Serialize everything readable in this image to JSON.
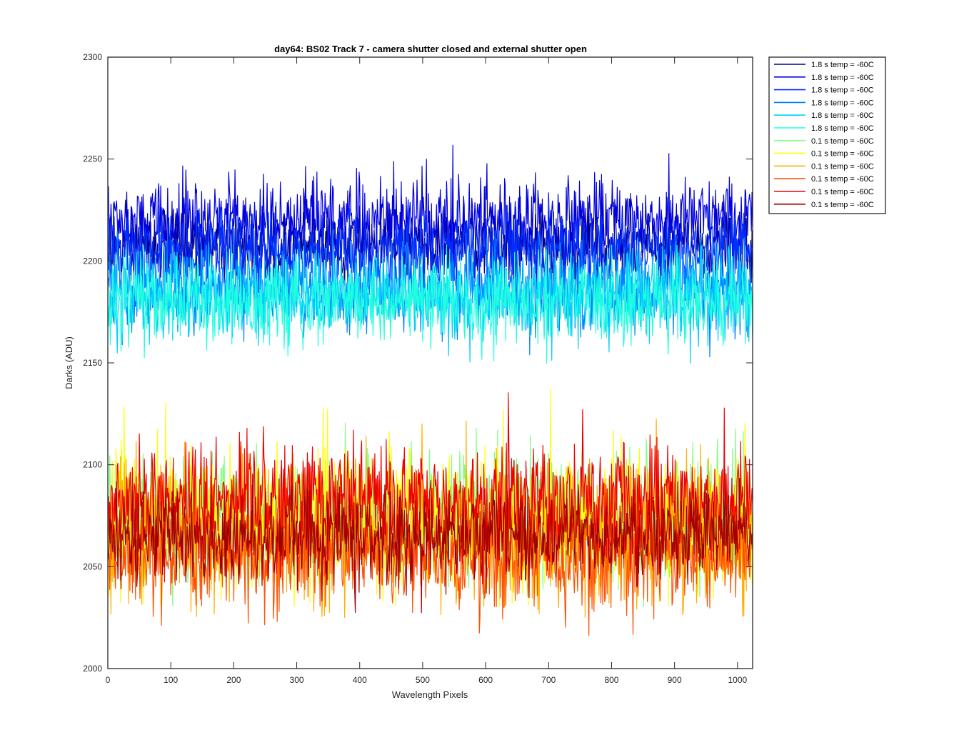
{
  "chart_data": {
    "type": "line",
    "title": "day64: BS02  Track 7 - camera shutter closed and external shutter open",
    "xlabel": "Wavelength Pixels",
    "ylabel": "Darks (ADU)",
    "xlim": [
      0,
      1024
    ],
    "ylim": [
      2000,
      2300
    ],
    "xticks": [
      0,
      100,
      200,
      300,
      400,
      500,
      600,
      700,
      800,
      900,
      1000
    ],
    "yticks": [
      2000,
      2050,
      2100,
      2150,
      2200,
      2250,
      2300
    ],
    "grid": false,
    "legend_position": "outside-top-right",
    "series": [
      {
        "name": "1.8 s temp = -60C",
        "color": "#00008f",
        "mean": 2207,
        "spread": 9,
        "min": 2180,
        "max": 2240
      },
      {
        "name": "1.8 s temp = -60C",
        "color": "#0000df",
        "mean": 2220,
        "spread": 10,
        "min": 2185,
        "max": 2257
      },
      {
        "name": "1.8 s temp = -60C",
        "color": "#0030ff",
        "mean": 2205,
        "spread": 9,
        "min": 2175,
        "max": 2238
      },
      {
        "name": "1.8 s temp = -60C",
        "color": "#0080ff",
        "mean": 2186,
        "spread": 11,
        "min": 2133,
        "max": 2215
      },
      {
        "name": "1.8 s temp = -60C",
        "color": "#00cfff",
        "mean": 2183,
        "spread": 10,
        "min": 2143,
        "max": 2210
      },
      {
        "name": "1.8 s temp = -60C",
        "color": "#20ffdf",
        "mean": 2180,
        "spread": 10,
        "min": 2138,
        "max": 2208
      },
      {
        "name": "0.1 s temp = -60C",
        "color": "#80ff80",
        "mean": 2075,
        "spread": 15,
        "min": 2030,
        "max": 2125
      },
      {
        "name": "0.1 s temp = -60C",
        "color": "#ffff00",
        "mean": 2073,
        "spread": 17,
        "min": 2030,
        "max": 2137
      },
      {
        "name": "0.1 s temp = -60C",
        "color": "#ffaf00",
        "mean": 2068,
        "spread": 16,
        "min": 2025,
        "max": 2130
      },
      {
        "name": "0.1 s temp = -60C",
        "color": "#ff5000",
        "mean": 2055,
        "spread": 12,
        "min": 2016,
        "max": 2095
      },
      {
        "name": "0.1 s temp = -60C",
        "color": "#ef0000",
        "mean": 2082,
        "spread": 14,
        "min": 2040,
        "max": 2152
      },
      {
        "name": "0.1 s temp = -60C",
        "color": "#a00000",
        "mean": 2065,
        "spread": 11,
        "min": 2027,
        "max": 2108
      }
    ],
    "x_count": 1024
  }
}
